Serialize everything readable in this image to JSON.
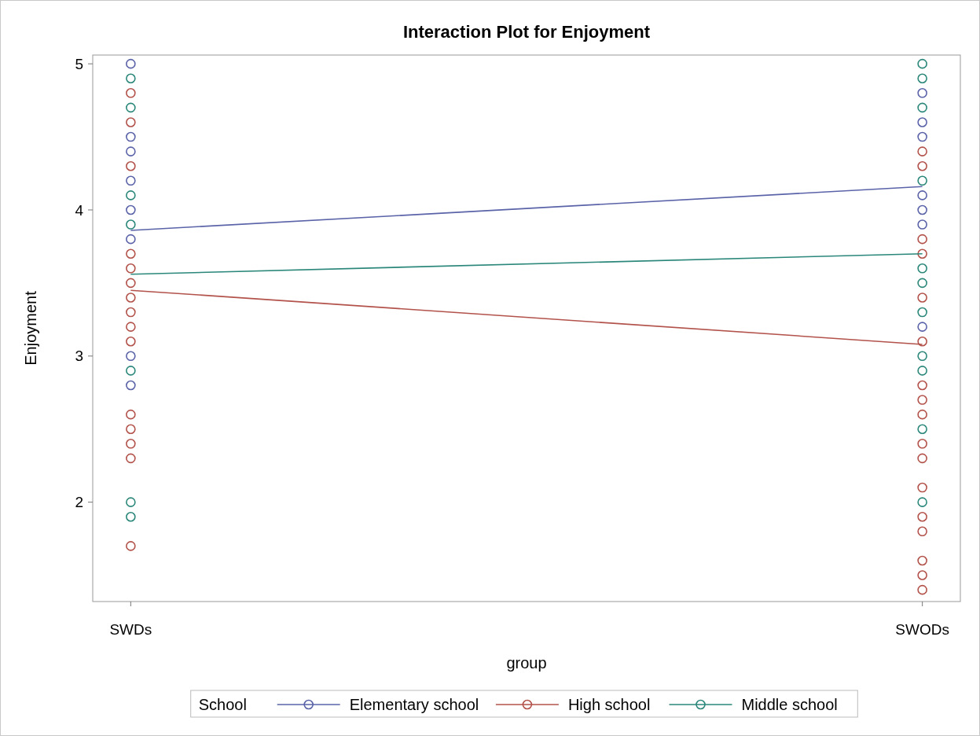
{
  "chart_data": {
    "type": "scatter",
    "title": "Interaction Plot for Enjoyment",
    "xlabel": "group",
    "ylabel": "Enjoyment",
    "legend_title": "School",
    "legend": "bottom",
    "marker": "circle",
    "grid": false,
    "categories": [
      "SWDs",
      "SWODs"
    ],
    "ylim": [
      1.32,
      5.06
    ],
    "yticks": [
      2,
      3,
      4,
      5
    ],
    "series": [
      {
        "color": "#5a63a8",
        "x": [
          "SWDs",
          "SWDs",
          "SWDs",
          "SWDs",
          "SWDs",
          "SWDs",
          "SWDs",
          "SWDs",
          "SWODs",
          "SWODs",
          "SWODs",
          "SWODs",
          "SWODs",
          "SWODs",
          "SWODs"
        ],
        "values": [
          5.0,
          4.5,
          4.4,
          4.2,
          4.0,
          3.8,
          3.0,
          2.8,
          4.8,
          4.6,
          4.5,
          4.1,
          4.0,
          3.9,
          3.2
        ]
      },
      {
        "color": "#b2524a",
        "x": [
          "SWDs",
          "SWDs",
          "SWDs",
          "SWDs",
          "SWDs",
          "SWDs",
          "SWDs",
          "SWDs",
          "SWDs",
          "SWDs",
          "SWDs",
          "SWDs",
          "SWDs",
          "SWDs",
          "SWDs",
          "SWODs",
          "SWODs",
          "SWODs",
          "SWODs",
          "SWODs",
          "SWODs",
          "SWODs",
          "SWODs",
          "SWODs",
          "SWODs",
          "SWODs",
          "SWODs",
          "SWODs",
          "SWODs",
          "SWODs",
          "SWODs",
          "SWODs"
        ],
        "values": [
          4.8,
          4.6,
          4.3,
          3.7,
          3.6,
          3.5,
          3.4,
          3.3,
          3.2,
          3.1,
          2.6,
          2.5,
          2.4,
          2.3,
          1.7,
          4.4,
          4.3,
          3.8,
          3.7,
          3.4,
          3.1,
          2.8,
          2.7,
          2.6,
          2.4,
          2.3,
          2.1,
          1.9,
          1.8,
          1.6,
          1.5,
          1.4
        ]
      },
      {
        "color": "#2a877a",
        "x": [
          "SWDs",
          "SWDs",
          "SWDs",
          "SWDs",
          "SWDs",
          "SWDs",
          "SWDs",
          "SWODs",
          "SWODs",
          "SWODs",
          "SWODs",
          "SWODs",
          "SWODs",
          "SWODs",
          "SWODs",
          "SWODs",
          "SWODs",
          "SWODs"
        ],
        "values": [
          4.9,
          4.7,
          4.1,
          3.9,
          2.9,
          2.0,
          1.9,
          5.0,
          4.9,
          4.7,
          4.2,
          3.6,
          3.5,
          3.3,
          3.0,
          2.9,
          2.5,
          2.0
        ]
      },
      {
        "type": "line",
        "marker": "none",
        "name": "Elementary school",
        "color": "#5a63a8",
        "values": [
          3.86,
          4.16
        ]
      },
      {
        "type": "line",
        "marker": "none",
        "name": "High school",
        "color": "#b2524a",
        "values": [
          3.45,
          3.08
        ]
      },
      {
        "type": "line",
        "marker": "none",
        "name": "Middle school",
        "color": "#2a877a",
        "values": [
          3.56,
          3.7
        ]
      }
    ]
  }
}
